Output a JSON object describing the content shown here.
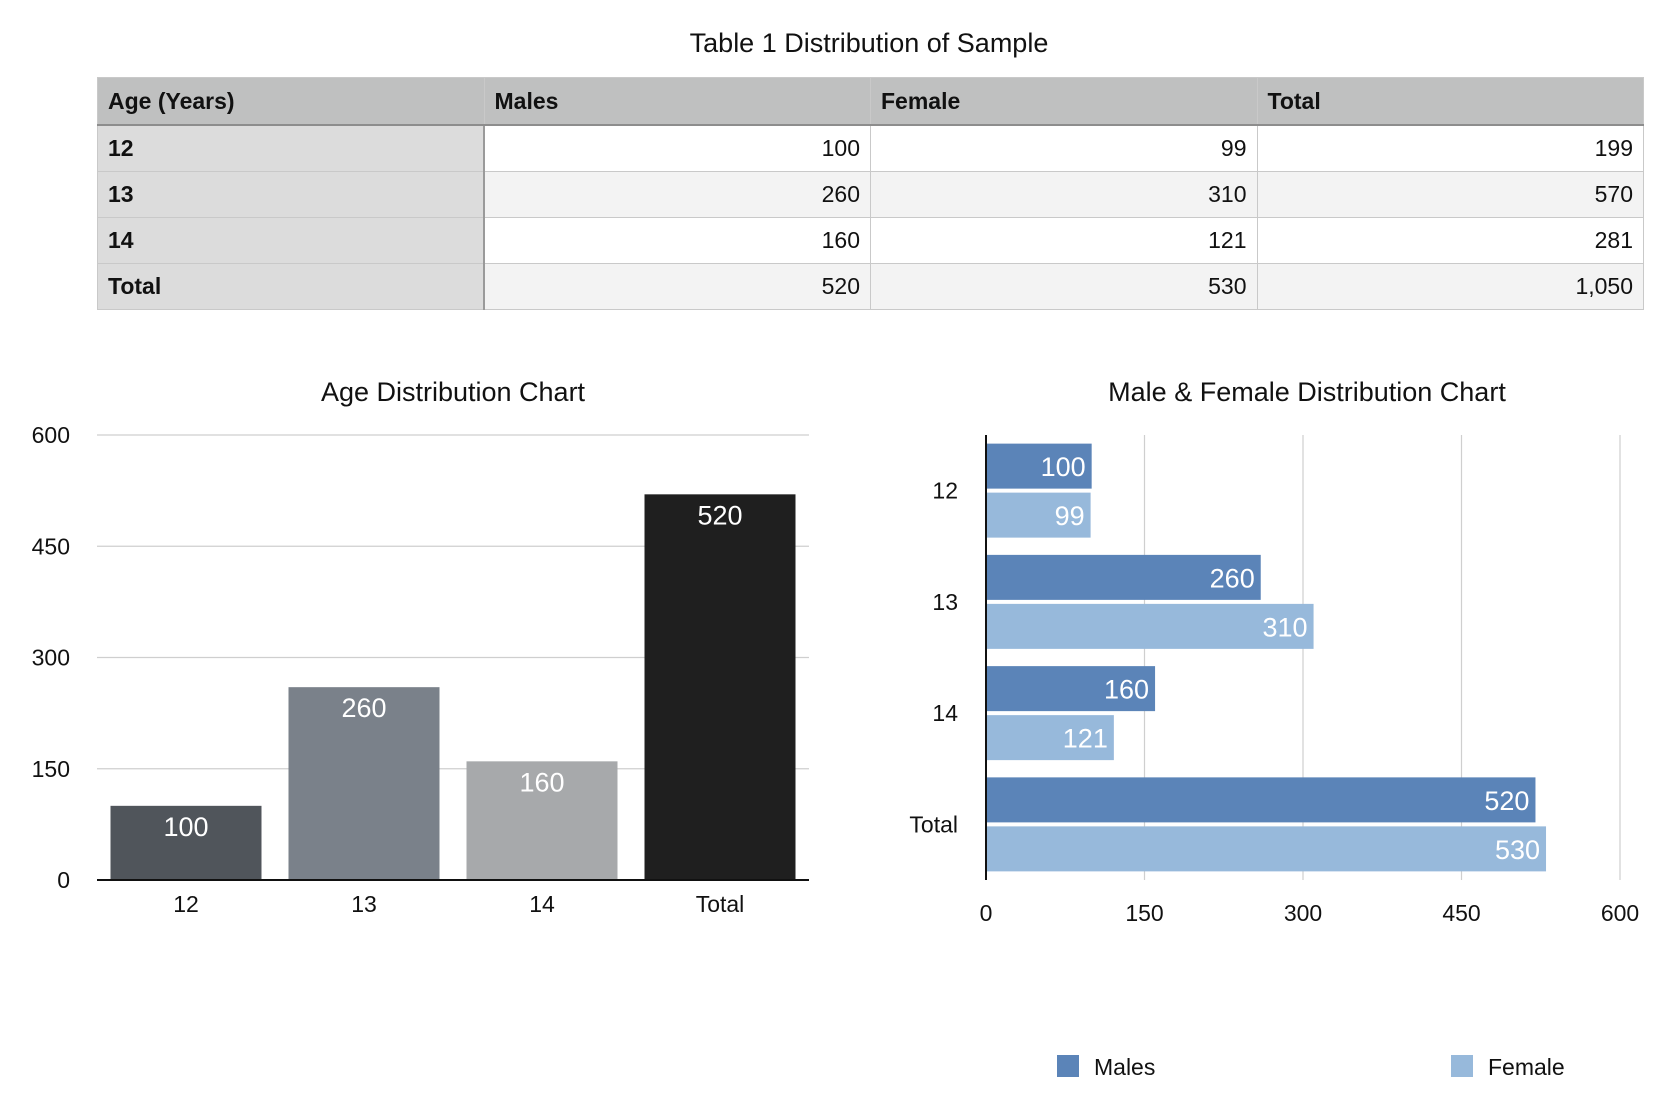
{
  "table": {
    "title": "Table 1 Distribution of Sample",
    "headers": [
      "Age (Years)",
      "Males",
      "Female",
      "Total"
    ],
    "rows": [
      [
        "12",
        "100",
        "99",
        "199"
      ],
      [
        "13",
        "260",
        "310",
        "570"
      ],
      [
        "14",
        "160",
        "121",
        "281"
      ],
      [
        "Total",
        "520",
        "530",
        "1,050"
      ]
    ]
  },
  "chart_data": [
    {
      "type": "bar",
      "title": "Age Distribution Chart",
      "categories": [
        "12",
        "13",
        "14",
        "Total"
      ],
      "values": [
        100,
        260,
        160,
        520
      ],
      "colors": [
        "#50555b",
        "#7a818a",
        "#a7a9ab",
        "#1f1f1f"
      ],
      "ylim": [
        0,
        600
      ],
      "yticks": [
        0,
        150,
        300,
        450,
        600
      ],
      "grid": true
    },
    {
      "type": "bar",
      "orientation": "horizontal",
      "title": "Male & Female Distribution Chart",
      "categories": [
        "12",
        "13",
        "14",
        "Total"
      ],
      "series": [
        {
          "name": "Males",
          "values": [
            100,
            260,
            160,
            520
          ],
          "color": "#5b84b8"
        },
        {
          "name": "Female",
          "values": [
            99,
            310,
            121,
            530
          ],
          "color": "#97b9db"
        }
      ],
      "xlim": [
        0,
        600
      ],
      "xticks": [
        0,
        150,
        300,
        450,
        600
      ],
      "grid": true,
      "legend": "bottom"
    }
  ]
}
